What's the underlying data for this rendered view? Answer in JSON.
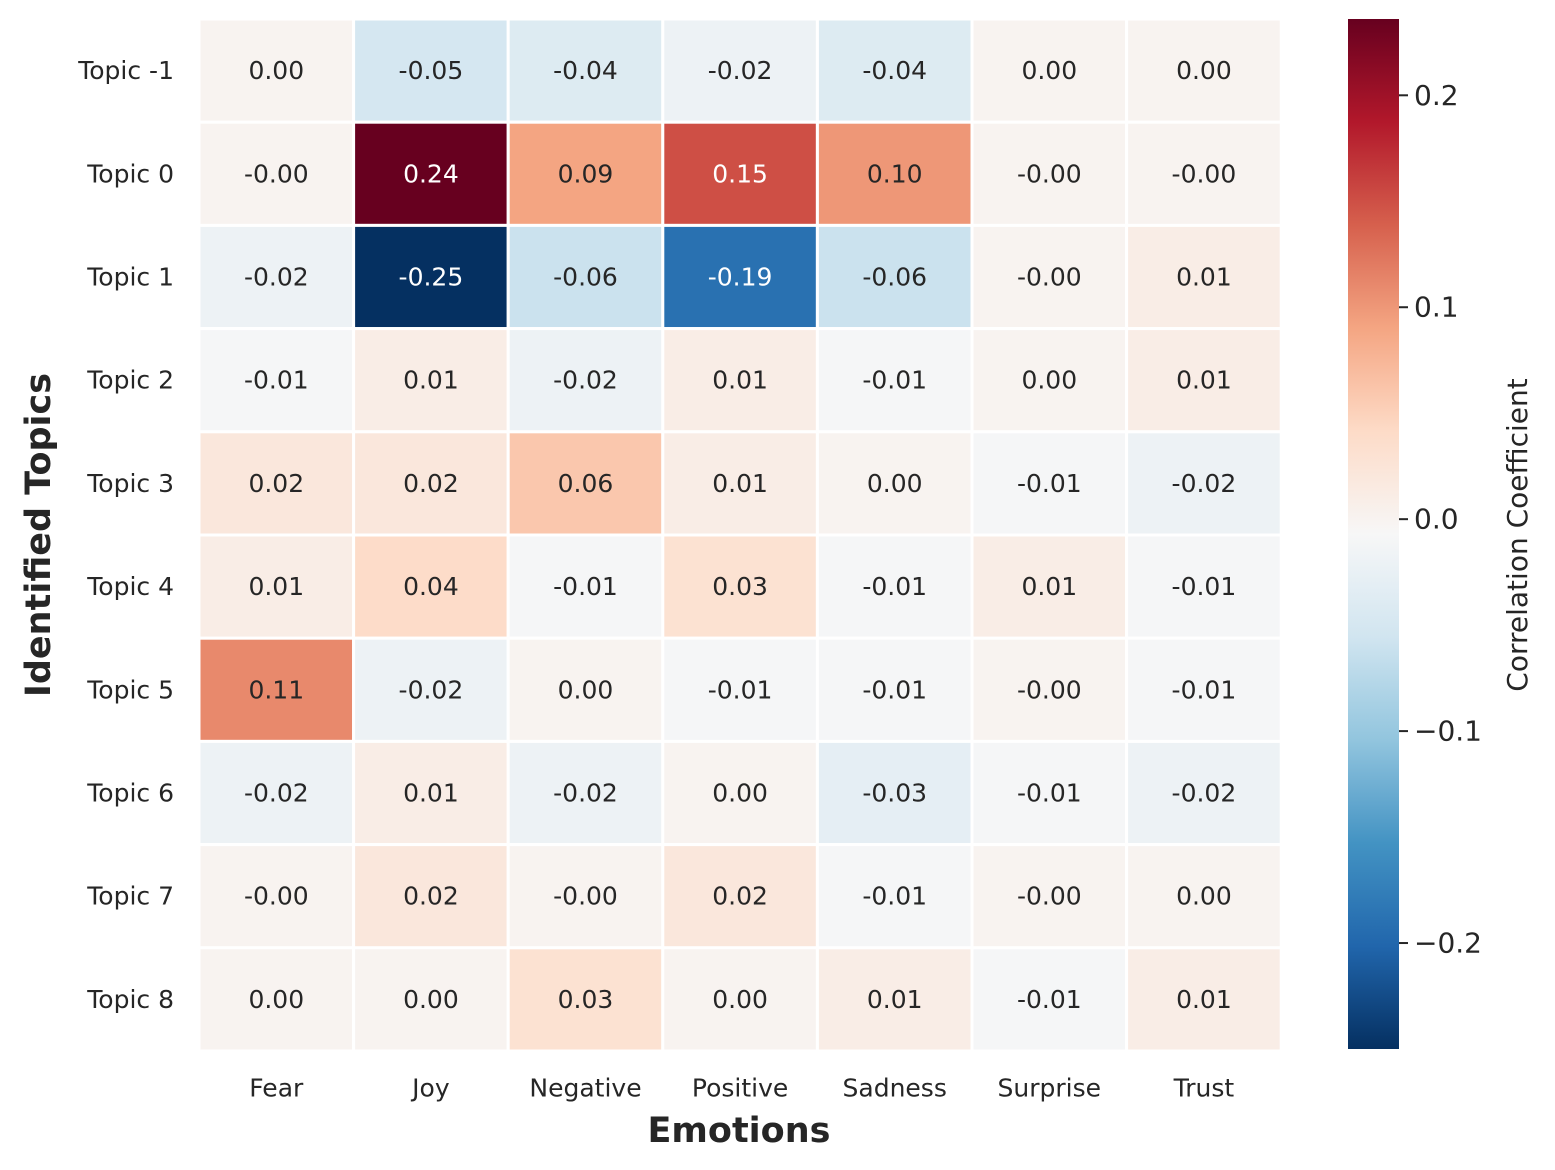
{
  "chart_data": {
    "type": "heatmap",
    "xlabel": "Emotions",
    "ylabel": "Identified Topics",
    "colorbar_label": "Correlation Coefficient",
    "colormap": "RdBu_r",
    "vmin": -0.25,
    "vmax": 0.236,
    "x_categories": [
      "Fear",
      "Joy",
      "Negative",
      "Positive",
      "Sadness",
      "Surprise",
      "Trust"
    ],
    "y_categories": [
      "Topic -1",
      "Topic 0",
      "Topic 1",
      "Topic 2",
      "Topic 3",
      "Topic 4",
      "Topic 5",
      "Topic 6",
      "Topic 7",
      "Topic 8"
    ],
    "values": [
      [
        0.0,
        -0.05,
        -0.04,
        -0.02,
        -0.04,
        0.0,
        0.0
      ],
      [
        -0.0,
        0.236,
        0.09,
        0.15,
        0.1,
        -0.0,
        -0.0
      ],
      [
        -0.02,
        -0.25,
        -0.06,
        -0.19,
        -0.06,
        -0.0,
        0.01
      ],
      [
        -0.01,
        0.01,
        -0.02,
        0.01,
        -0.01,
        0.0,
        0.01
      ],
      [
        0.02,
        0.02,
        0.06,
        0.01,
        0.0,
        -0.01,
        -0.02
      ],
      [
        0.01,
        0.04,
        -0.01,
        0.03,
        -0.01,
        0.01,
        -0.01
      ],
      [
        0.11,
        -0.02,
        0.0,
        -0.01,
        -0.01,
        -0.0,
        -0.01
      ],
      [
        -0.02,
        0.01,
        -0.02,
        0.0,
        -0.03,
        -0.01,
        -0.02
      ],
      [
        -0.0,
        0.02,
        -0.0,
        0.02,
        -0.01,
        -0.0,
        0.0
      ],
      [
        0.0,
        0.0,
        0.03,
        0.0,
        0.01,
        -0.01,
        0.01
      ]
    ],
    "annotations": [
      [
        "0.00",
        "-0.05",
        "-0.04",
        "-0.02",
        "-0.04",
        "0.00",
        "0.00"
      ],
      [
        "-0.00",
        "0.24",
        "0.09",
        "0.15",
        "0.10",
        "-0.00",
        "-0.00"
      ],
      [
        "-0.02",
        "-0.25",
        "-0.06",
        "-0.19",
        "-0.06",
        "-0.00",
        "0.01"
      ],
      [
        "-0.01",
        "0.01",
        "-0.02",
        "0.01",
        "-0.01",
        "0.00",
        "0.01"
      ],
      [
        "0.02",
        "0.02",
        "0.06",
        "0.01",
        "0.00",
        "-0.01",
        "-0.02"
      ],
      [
        "0.01",
        "0.04",
        "-0.01",
        "0.03",
        "-0.01",
        "0.01",
        "-0.01"
      ],
      [
        "0.11",
        "-0.02",
        "0.00",
        "-0.01",
        "-0.01",
        "-0.00",
        "-0.01"
      ],
      [
        "-0.02",
        "0.01",
        "-0.02",
        "0.00",
        "-0.03",
        "-0.01",
        "-0.02"
      ],
      [
        "-0.00",
        "0.02",
        "-0.00",
        "0.02",
        "-0.01",
        "-0.00",
        "0.00"
      ],
      [
        "0.00",
        "0.00",
        "0.03",
        "0.00",
        "0.01",
        "-0.01",
        "0.01"
      ]
    ],
    "colorbar_ticks": [
      0.2,
      0.1,
      0.0,
      -0.1,
      -0.2
    ],
    "colorbar_tick_labels": [
      "0.2",
      "0.1",
      "0.0",
      "−0.1",
      "−0.2"
    ],
    "grid": false
  }
}
